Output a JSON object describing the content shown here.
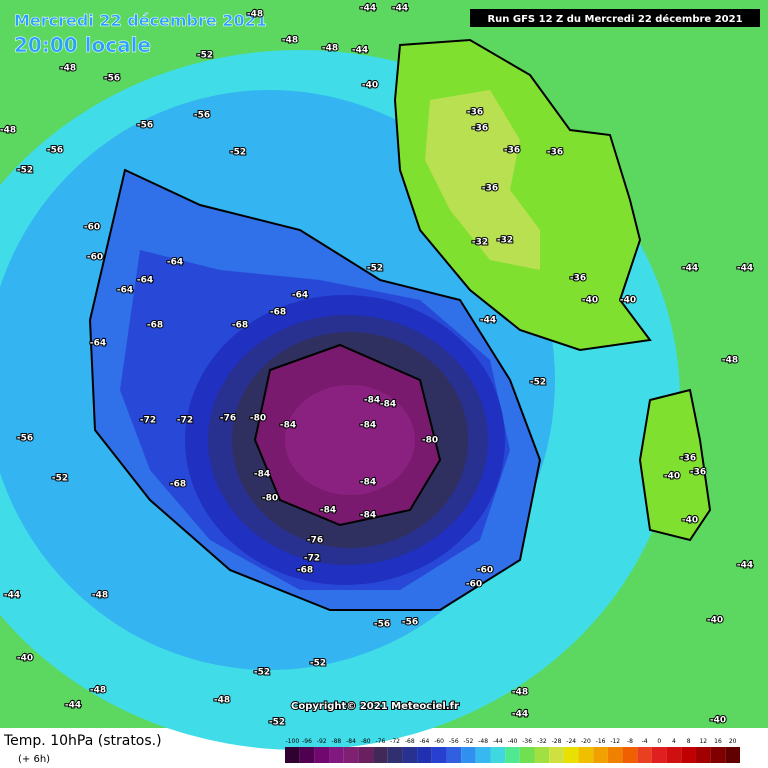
{
  "header": {
    "date": "Mercredi 22 décembre 2021",
    "time": "20:00 locale",
    "run": "Run GFS 12 Z du Mercredi 22 décembre 2021"
  },
  "footer": {
    "title": "Temp. 10hPa (stratos.)",
    "offset": "(+ 6h)",
    "copyright": "Copyright© 2021 Meteociel.fr"
  },
  "legend": {
    "values": [
      -100,
      -96,
      -92,
      -88,
      -84,
      -80,
      -76,
      -72,
      -68,
      -64,
      -60,
      -56,
      -52,
      -48,
      -44,
      -40,
      -36,
      -32,
      -28,
      -24,
      -20,
      -16,
      -12,
      -8,
      -4,
      0,
      4,
      8,
      12,
      16,
      20
    ],
    "colors": [
      "#300030",
      "#500050",
      "#700870",
      "#801880",
      "#802070",
      "#6a2060",
      "#402858",
      "#303070",
      "#283090",
      "#2030b0",
      "#2840d0",
      "#3060e0",
      "#3090f0",
      "#38b8f0",
      "#40d8e0",
      "#50e890",
      "#70e050",
      "#a0e040",
      "#d0e040",
      "#e8e000",
      "#f0c000",
      "#f0a000",
      "#f08000",
      "#f06000",
      "#e84020",
      "#e02020",
      "#d01010",
      "#c00000",
      "#a00000",
      "#800000",
      "#600000"
    ]
  },
  "map": {
    "labels": [
      "-48",
      "-44",
      "-44",
      "-48",
      "-48",
      "-44",
      "-40",
      "-48",
      "-56",
      "-52",
      "-56",
      "-56",
      "-56",
      "-52",
      "-52",
      "-60",
      "-60",
      "-64",
      "-64",
      "-64",
      "-68",
      "-68",
      "-68",
      "-64",
      "-64",
      "-72",
      "-72",
      "-76",
      "-80",
      "-84",
      "-84",
      "-84",
      "-84",
      "-80",
      "-84",
      "-80",
      "-84",
      "-84",
      "-84",
      "-76",
      "-72",
      "-68",
      "-68",
      "-60",
      "-60",
      "-56",
      "-56",
      "-52",
      "-52",
      "-48",
      "-52",
      "-44",
      "-48",
      "-36",
      "-36",
      "-36",
      "-36",
      "-36",
      "-32",
      "-32",
      "-36",
      "-40",
      "-40",
      "-36",
      "-36",
      "-40",
      "-40",
      "-44",
      "-44",
      "-48",
      "-44",
      "-40",
      "-48",
      "-44",
      "-48",
      "-52",
      "-56",
      "-40",
      "-40",
      "-44",
      "-48",
      "-52",
      "-44",
      "-52"
    ]
  }
}
